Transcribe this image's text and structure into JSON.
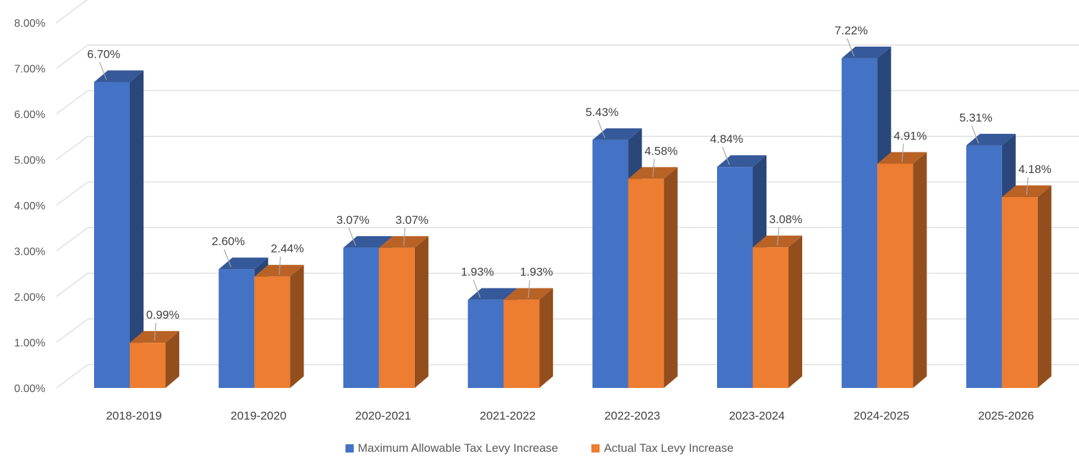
{
  "chart_data": {
    "type": "bar",
    "style": "3d-clustered-column",
    "categories": [
      "2018-2019",
      "2019-2020",
      "2020-2021",
      "2021-2022",
      "2022-2023",
      "2023-2024",
      "2024-2025",
      "2025-2026"
    ],
    "series": [
      {
        "name": "Maximum Allowable Tax Levy Increase",
        "color": "#4472C4",
        "values": [
          6.7,
          2.6,
          3.07,
          1.93,
          5.43,
          4.84,
          7.22,
          5.31
        ],
        "labels": [
          "6.70%",
          "2.60%",
          "3.07%",
          "1.93%",
          "5.43%",
          "4.84%",
          "7.22%",
          "5.31%"
        ]
      },
      {
        "name": "Actual Tax Levy Increase",
        "color": "#ED7D31",
        "values": [
          0.99,
          2.44,
          3.07,
          1.93,
          4.58,
          3.08,
          4.91,
          4.18
        ],
        "labels": [
          "0.99%",
          "2.44%",
          "3.07%",
          "1.93%",
          "4.58%",
          "3.08%",
          "4.91%",
          "4.18%"
        ]
      }
    ],
    "yticks": [
      "0.00%",
      "1.00%",
      "2.00%",
      "3.00%",
      "4.00%",
      "5.00%",
      "6.00%",
      "7.00%",
      "8.00%"
    ],
    "ylim": [
      0,
      8
    ],
    "grid": true,
    "legend_position": "bottom"
  }
}
